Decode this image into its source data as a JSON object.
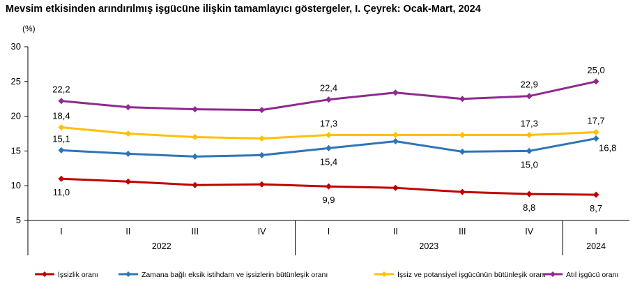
{
  "chart_data": {
    "type": "line",
    "title": "Mevsim etkisinden arındırılmış işgücüne ilişkin tamamlayıcı göstergeler, I. Çeyrek: Ocak-Mart, 2024",
    "ylabel": "(%)",
    "xlabel": "",
    "ylim": [
      5,
      30
    ],
    "yticks": [
      "5",
      "10",
      "15",
      "20",
      "25",
      "30"
    ],
    "categories": [
      "I",
      "II",
      "III",
      "IV",
      "I",
      "II",
      "III",
      "IV",
      "I"
    ],
    "year_groups": [
      {
        "label": "2022",
        "start": 0,
        "end": 3
      },
      {
        "label": "2023",
        "start": 4,
        "end": 7
      },
      {
        "label": "2024",
        "start": 8,
        "end": 8
      }
    ],
    "grid": false,
    "legend_position": "bottom",
    "series": [
      {
        "name": "İşsizlik oranı",
        "color": "#c00000",
        "values": [
          11.0,
          10.6,
          10.1,
          10.2,
          9.9,
          9.7,
          9.1,
          8.8,
          8.7
        ],
        "labels": [
          "11,0",
          null,
          null,
          null,
          "9,9",
          null,
          null,
          "8,8",
          "8,7"
        ],
        "label_pos": "below"
      },
      {
        "name": "Zamana bağlı eksik istihdam ve işsizlerin bütünleşik oranı",
        "color": "#2e75b6",
        "values": [
          15.1,
          14.6,
          14.2,
          14.4,
          15.4,
          16.4,
          14.9,
          15.0,
          16.8
        ],
        "labels": [
          "15,1",
          null,
          null,
          null,
          "15,4",
          null,
          null,
          "15,0",
          "16,8"
        ],
        "label_pos": [
          "above",
          null,
          null,
          null,
          "below",
          null,
          null,
          "below",
          "right"
        ]
      },
      {
        "name": "İşsiz ve potansiyel işgücünün bütünleşik oranı",
        "color": "#ffc000",
        "values": [
          18.4,
          17.5,
          17.0,
          16.8,
          17.3,
          17.3,
          17.3,
          17.3,
          17.7
        ],
        "labels": [
          "18,4",
          null,
          null,
          null,
          "17,3",
          null,
          null,
          "17,3",
          "17,7"
        ],
        "label_pos": "above"
      },
      {
        "name": "Atıl işgücü oranı",
        "color": "#8e2b8e",
        "values": [
          22.2,
          21.3,
          21.0,
          20.9,
          22.4,
          23.4,
          22.5,
          22.9,
          25.0
        ],
        "labels": [
          "22,2",
          null,
          null,
          null,
          "22,4",
          null,
          null,
          "22,9",
          "25,0"
        ],
        "label_pos": "above"
      }
    ]
  }
}
